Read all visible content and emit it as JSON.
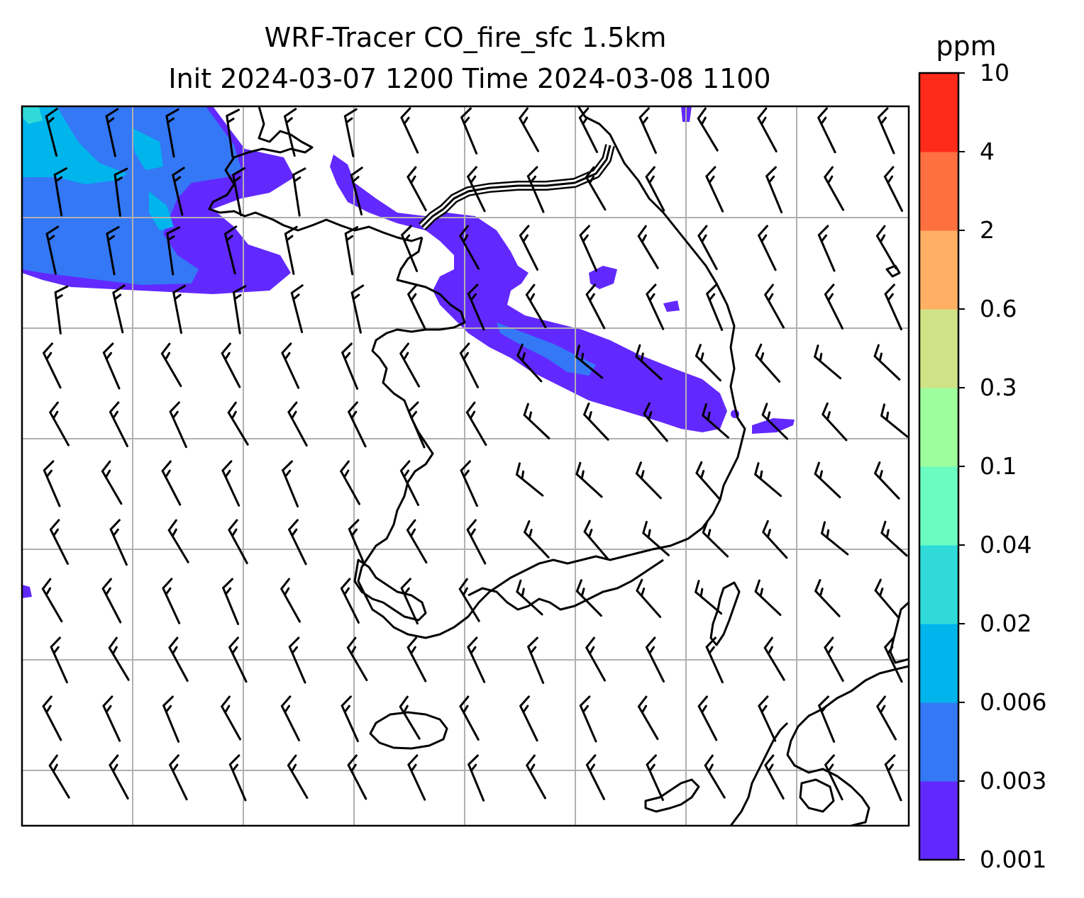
{
  "title": {
    "line1": "WRF-Tracer CO_fire_sfc 1.5km",
    "line2": "Init 2024-03-07 1200 Time 2024-03-08 1100"
  },
  "colorbar": {
    "unit": "ppm",
    "levels": [
      "0.001",
      "0.003",
      "0.006",
      "0.02",
      "0.04",
      "0.1",
      "0.3",
      "0.6",
      "2",
      "4",
      "10"
    ],
    "colors": [
      "#6229ff",
      "#3478f6",
      "#00b4ec",
      "#2fdad8",
      "#6afcc0",
      "#9efe9d",
      "#d0e286",
      "#ffb064",
      "#ff7040",
      "#ff2a1a"
    ]
  },
  "map": {
    "coastline_color": "#000000",
    "gridline_color": "#b0b0b0",
    "wind_barb_color": "#000000"
  }
}
